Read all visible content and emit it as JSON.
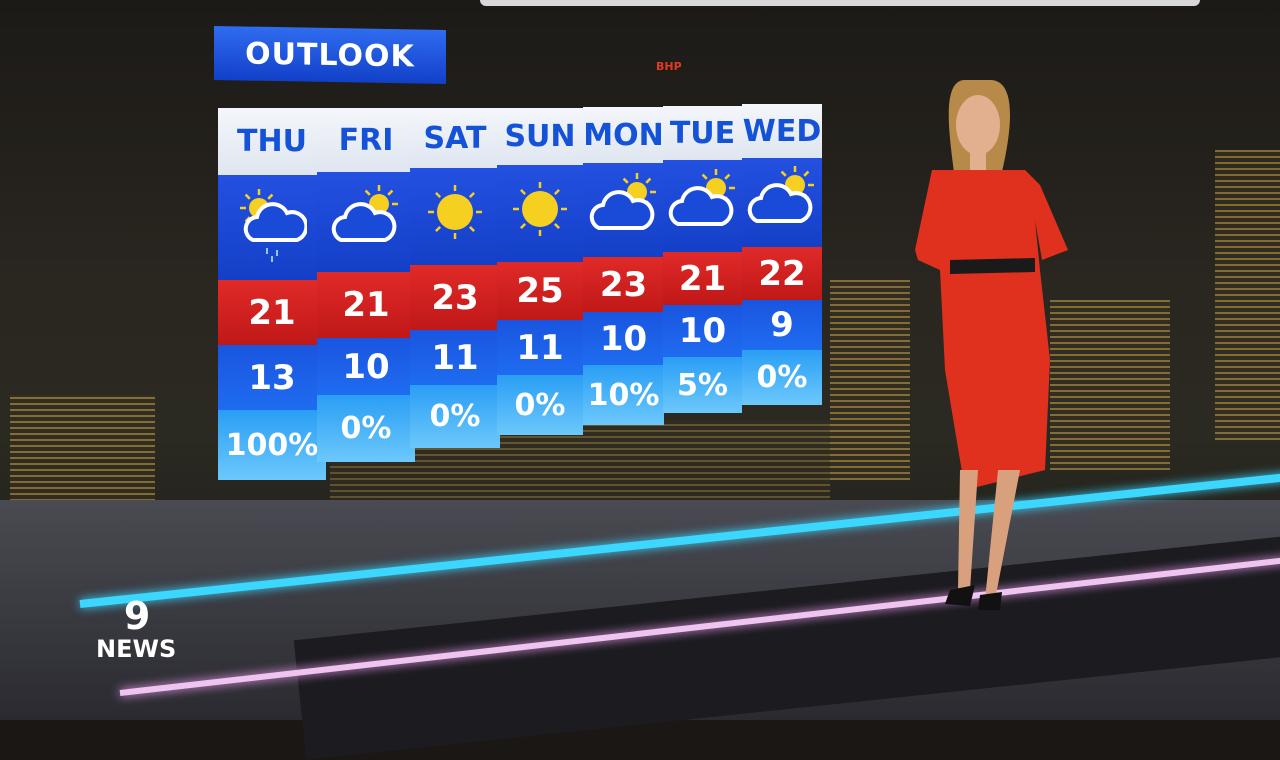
{
  "title": "OUTLOOK",
  "forecast": [
    {
      "day": "THU",
      "icon": "sun-cloud-rain-icon",
      "max": "21",
      "min": "13",
      "rain": "100%"
    },
    {
      "day": "FRI",
      "icon": "cloud-sun-icon",
      "max": "21",
      "min": "10",
      "rain": "0%"
    },
    {
      "day": "SAT",
      "icon": "sun-icon",
      "max": "23",
      "min": "11",
      "rain": "0%"
    },
    {
      "day": "SUN",
      "icon": "sun-icon",
      "max": "25",
      "min": "11",
      "rain": "0%"
    },
    {
      "day": "MON",
      "icon": "cloud-sun-icon",
      "max": "23",
      "min": "10",
      "rain": "10%"
    },
    {
      "day": "TUE",
      "icon": "cloud-sun-icon",
      "max": "21",
      "min": "10",
      "rain": "5%"
    },
    {
      "day": "WED",
      "icon": "cloud-sun-icon",
      "max": "22",
      "min": "9",
      "rain": "0%"
    }
  ],
  "colors": {
    "header_blue": "#1452d8",
    "max_red": "#d02020",
    "min_blue": "#1f6cf0",
    "rain_lightblue": "#4db4f8",
    "sun_yellow": "#f5d020",
    "dress_red": "#e0301e"
  },
  "logo": {
    "mark": "9",
    "text": "NEWS"
  },
  "sign": "BHP"
}
